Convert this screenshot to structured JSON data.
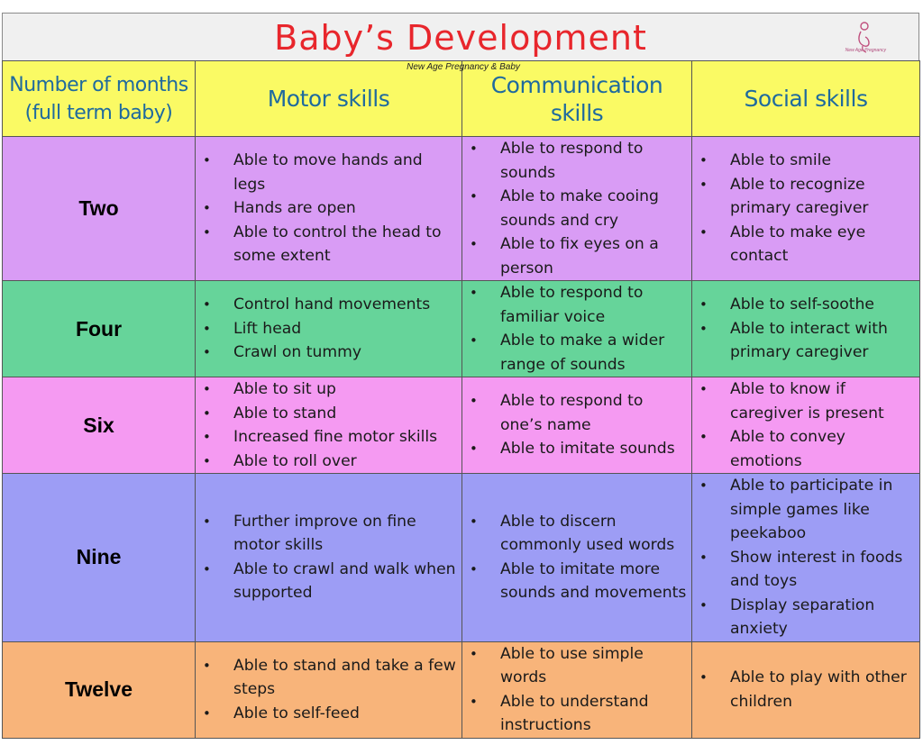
{
  "title": "Baby’s Development",
  "watermark": "New Age Pregnancy & Baby",
  "logo_text": "New Age Pregnancy",
  "colors": {
    "title": "#e8262c",
    "header_bg": "#fafa64",
    "header_text": "#1f6a9e",
    "two": "#d99cf5",
    "four": "#66d49a",
    "six": "#f59af2",
    "nine": "#9d9df5",
    "twelve": "#f8b47a"
  },
  "headers": {
    "months_line1": "Number of months",
    "months_line2": "(full term baby)",
    "motor": "Motor skills",
    "communication": "Communication skills",
    "social": "Social skills"
  },
  "rows": [
    {
      "month": "Two",
      "motor": [
        "Able to move hands and legs",
        "Hands are open",
        "Able to control the head to some extent"
      ],
      "communication": [
        "Able to respond to sounds",
        "Able to make cooing sounds and cry",
        "Able to fix eyes on a person"
      ],
      "social": [
        "Able to smile",
        "Able to recognize primary caregiver",
        "Able to make eye contact"
      ]
    },
    {
      "month": "Four",
      "motor": [
        "Control hand movements",
        "Lift head",
        "Crawl on tummy"
      ],
      "communication": [
        "Able to respond to familiar voice",
        "Able to make a wider range of sounds"
      ],
      "social": [
        "Able to self-soothe",
        "Able to interact with primary caregiver"
      ]
    },
    {
      "month": "Six",
      "motor": [
        "Able to sit up",
        "Able to stand",
        "Increased fine motor skills",
        "Able to roll over"
      ],
      "communication": [
        "Able to respond to one’s name",
        "Able to imitate sounds"
      ],
      "social": [
        "Able to know if caregiver is present",
        "Able to convey emotions"
      ]
    },
    {
      "month": "Nine",
      "motor": [
        "Further improve on fine motor skills",
        "Able to crawl and walk when supported"
      ],
      "communication": [
        "Able to discern commonly used words",
        "Able to imitate more sounds and movements"
      ],
      "social": [
        "Able to participate in simple games like peekaboo",
        "Show interest in foods and toys",
        "Display separation anxiety"
      ]
    },
    {
      "month": "Twelve",
      "motor": [
        "Able to stand and take a few steps",
        "Able to self-feed"
      ],
      "communication": [
        "Able to use simple words",
        "Able to understand instructions"
      ],
      "social": [
        "Able to play with other children"
      ]
    }
  ]
}
